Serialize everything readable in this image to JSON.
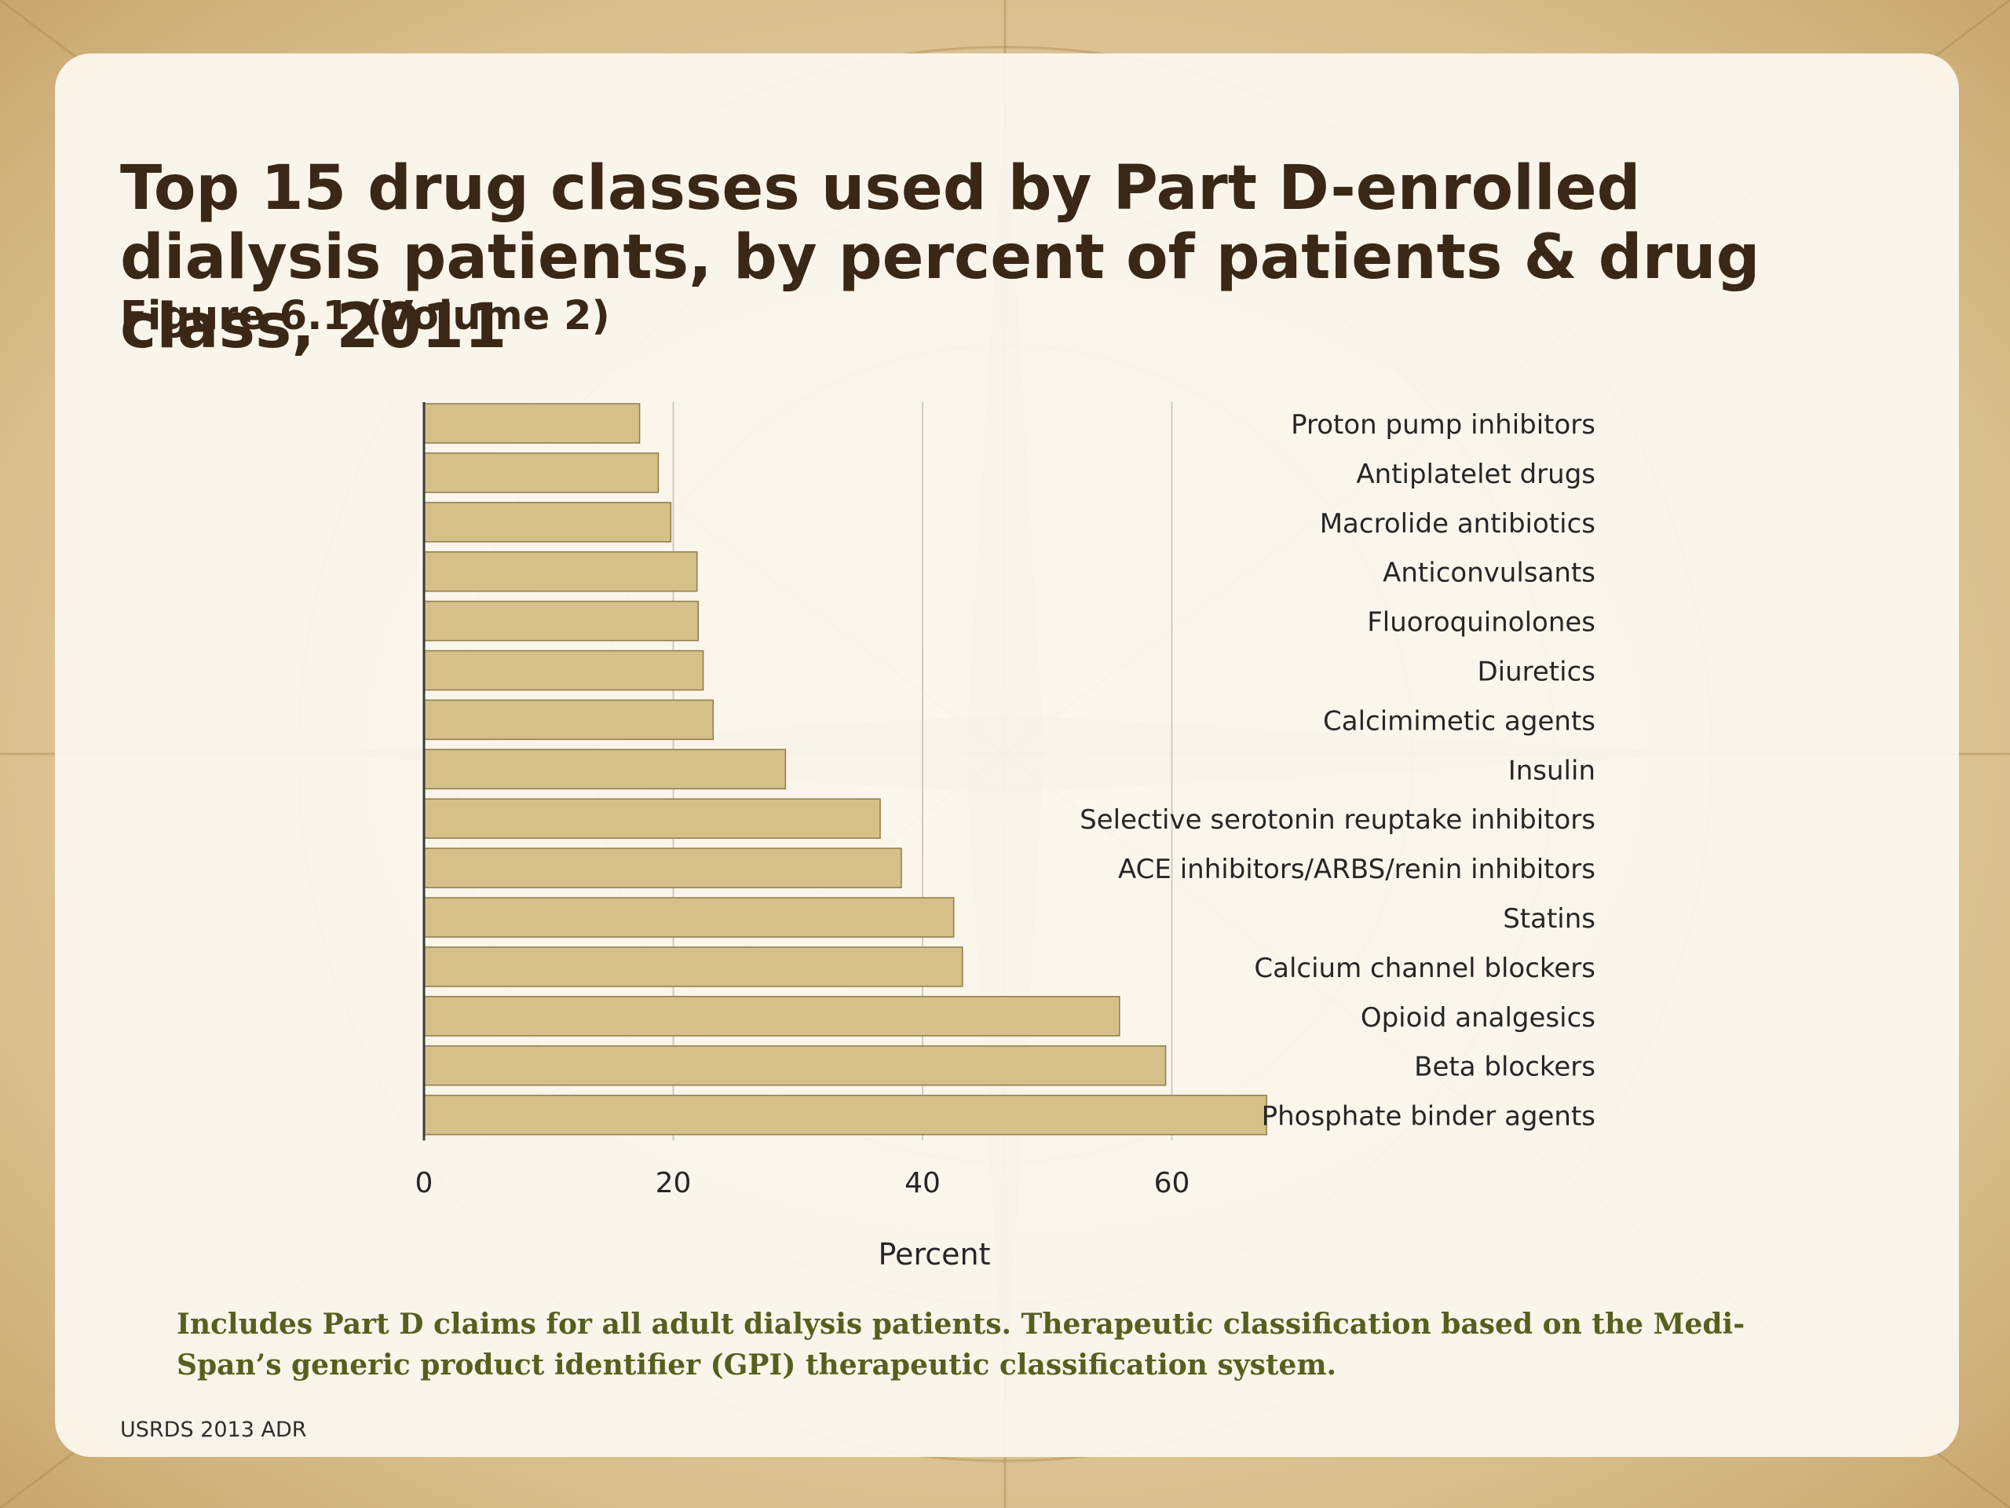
{
  "header": {
    "title": "Top 15 drug classes used by Part D-enrolled dialysis patients, by percent of patients & drug class, 2011",
    "subtitle": "Figure 6.1 (Volume 2)"
  },
  "footer": {
    "note": "Includes Part D claims for all adult dialysis patients. Therapeutic classification based on the Medi-Span’s generic product identifier (GPI) therapeutic classification system.",
    "source": "USRDS 2013 ADR"
  },
  "colors": {
    "bar_fill": "#d6c08a",
    "bar_stroke": "#8f7a48",
    "title": "#3a2716",
    "note": "#55601f",
    "background": "#d8bf8a",
    "card": "#fcf9f1"
  },
  "chart_data": {
    "type": "bar",
    "orientation": "horizontal",
    "categories": [
      "Proton pump inhibitors",
      "Antiplatelet drugs",
      "Macrolide antibiotics",
      "Anticonvulsants",
      "Fluoroquinolones",
      "Diuretics",
      "Calcimimetic agents",
      "Insulin",
      "Selective serotonin reuptake inhibitors",
      "ACE inhibitors/ARBS/renin inhibitors",
      "Statins",
      "Calcium channel blockers",
      "Opioid analgesics",
      "Beta blockers",
      "Phosphate binder agents"
    ],
    "values": [
      17.3,
      18.8,
      19.8,
      21.9,
      22.0,
      22.4,
      23.2,
      29.0,
      36.6,
      38.3,
      42.5,
      43.2,
      55.8,
      59.5,
      67.6
    ],
    "xlabel": "Percent",
    "ylabel": "",
    "xlim": [
      0,
      70
    ],
    "xticks": [
      0,
      20,
      40,
      60
    ],
    "grid": "vertical",
    "legend": "none"
  }
}
